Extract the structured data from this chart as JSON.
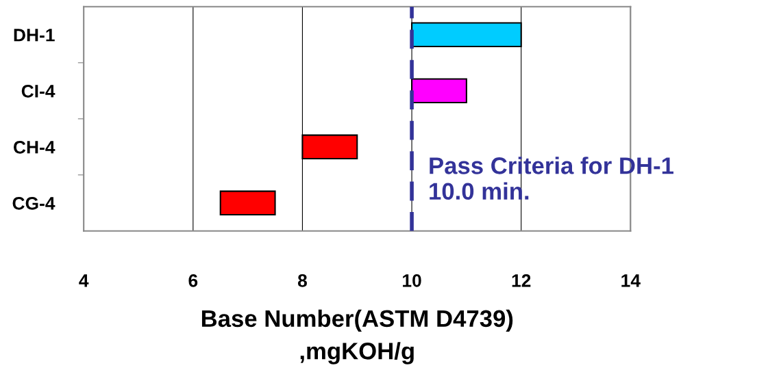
{
  "chart_data": {
    "type": "bar",
    "orientation": "horizontal",
    "categories": [
      "DH-1",
      "CI-4",
      "CH-4",
      "CG-4"
    ],
    "values": [
      2,
      1,
      1,
      1
    ],
    "base": [
      10,
      10,
      8,
      6.5
    ],
    "colors": [
      "#00ccff",
      "#ff00ff",
      "#ff0000",
      "#ff0000"
    ],
    "xlim": [
      4,
      14
    ],
    "xticks": [
      4,
      6,
      8,
      10,
      12,
      14
    ],
    "grid": "x",
    "xlabel": "Base Number(ASTM D4739)\n,mgKOH/g",
    "ref_lines": [
      {
        "axis": "x",
        "value": 10,
        "label": "Pass Criteria for DH-1\n10.0 min.",
        "color": "#333399",
        "line_style": "dashed"
      }
    ]
  }
}
